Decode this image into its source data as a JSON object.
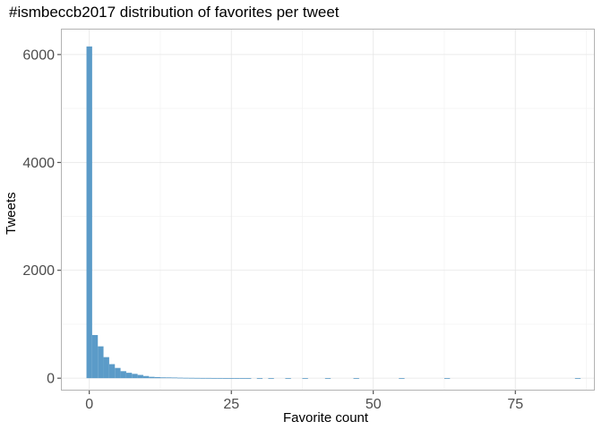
{
  "chart_data": {
    "type": "bar",
    "title": "#ismbeccb2017 distribution of favorites per tweet",
    "xlabel": "Favorite count",
    "ylabel": "Tweets",
    "xlim": [
      -5,
      89
    ],
    "ylim": [
      -230,
      6480
    ],
    "x_ticks": [
      0,
      25,
      50,
      75
    ],
    "y_ticks": [
      0,
      2000,
      4000,
      6000
    ],
    "grid": true,
    "bar_color": "#5b9bc8",
    "bins": [
      {
        "x": 0,
        "count": 6150
      },
      {
        "x": 1,
        "count": 800
      },
      {
        "x": 2,
        "count": 590
      },
      {
        "x": 3,
        "count": 390
      },
      {
        "x": 4,
        "count": 260
      },
      {
        "x": 5,
        "count": 190
      },
      {
        "x": 6,
        "count": 130
      },
      {
        "x": 7,
        "count": 100
      },
      {
        "x": 8,
        "count": 80
      },
      {
        "x": 9,
        "count": 60
      },
      {
        "x": 10,
        "count": 40
      },
      {
        "x": 11,
        "count": 25
      },
      {
        "x": 12,
        "count": 20
      },
      {
        "x": 13,
        "count": 15
      },
      {
        "x": 14,
        "count": 14
      },
      {
        "x": 15,
        "count": 12
      },
      {
        "x": 16,
        "count": 9
      },
      {
        "x": 17,
        "count": 7
      },
      {
        "x": 18,
        "count": 6
      },
      {
        "x": 19,
        "count": 5
      },
      {
        "x": 20,
        "count": 4
      },
      {
        "x": 21,
        "count": 4
      },
      {
        "x": 22,
        "count": 3
      },
      {
        "x": 23,
        "count": 3
      },
      {
        "x": 24,
        "count": 2
      },
      {
        "x": 25,
        "count": 2
      },
      {
        "x": 26,
        "count": 2
      },
      {
        "x": 27,
        "count": 2
      },
      {
        "x": 28,
        "count": 1
      },
      {
        "x": 30,
        "count": 1
      },
      {
        "x": 32,
        "count": 1
      },
      {
        "x": 35,
        "count": 1
      },
      {
        "x": 38,
        "count": 1
      },
      {
        "x": 42,
        "count": 1
      },
      {
        "x": 47,
        "count": 1
      },
      {
        "x": 55,
        "count": 1
      },
      {
        "x": 63,
        "count": 1
      },
      {
        "x": 86,
        "count": 1
      }
    ]
  }
}
